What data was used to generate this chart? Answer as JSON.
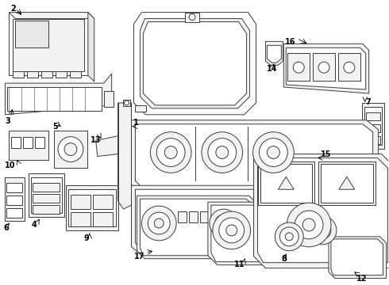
{
  "bg_color": "#ffffff",
  "line_color": "#3a3a3a",
  "text_color": "#111111",
  "lw": 0.7,
  "fig_w": 4.9,
  "fig_h": 3.6,
  "dpi": 100
}
